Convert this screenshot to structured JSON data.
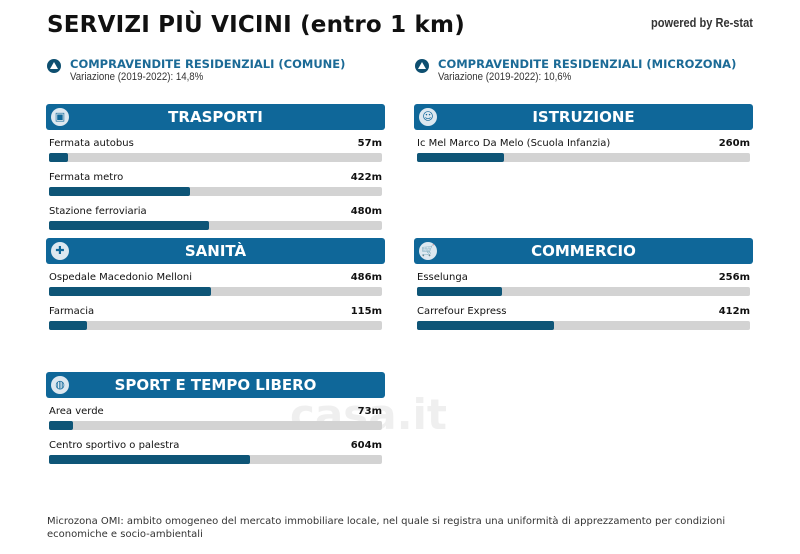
{
  "title": "SERVIZI PIÙ VICINI (entro 1 km)",
  "powered_by": "powered by Re-stat",
  "watermark": "casa.it",
  "stats": [
    {
      "heading": "COMPRAVENDITE RESIDENZIALI (COMUNE)",
      "sub": "Variazione (2019-2022): 14,8%",
      "icon": "triangle-up-icon"
    },
    {
      "heading": "COMPRAVENDITE RESIDENZIALI (MICROZONA)",
      "sub": "Variazione (2019-2022): 10,6%",
      "icon": "triangle-up-icon"
    }
  ],
  "scale_max_m": 1000,
  "bar_color": "#0e5577",
  "header_color": "#0f6799",
  "sections": [
    {
      "title": "TRASPORTI",
      "icon": "bus-icon",
      "items": [
        {
          "name": "Fermata autobus",
          "dist": "57m",
          "value": 57
        },
        {
          "name": "Fermata metro",
          "dist": "422m",
          "value": 422
        },
        {
          "name": "Stazione ferroviaria",
          "dist": "480m",
          "value": 480
        }
      ]
    },
    {
      "title": "ISTRUZIONE",
      "icon": "student-icon",
      "items": [
        {
          "name": "Ic Mel Marco Da Melo (Scuola Infanzia)",
          "dist": "260m",
          "value": 260
        }
      ]
    },
    {
      "title": "SANITÀ",
      "icon": "hospital-icon",
      "items": [
        {
          "name": "Ospedale Macedonio Melloni",
          "dist": "486m",
          "value": 486
        },
        {
          "name": "Farmacia",
          "dist": "115m",
          "value": 115
        }
      ]
    },
    {
      "title": "COMMERCIO",
      "icon": "cart-icon",
      "items": [
        {
          "name": "Esselunga",
          "dist": "256m",
          "value": 256
        },
        {
          "name": "Carrefour Express",
          "dist": "412m",
          "value": 412
        }
      ]
    },
    {
      "title": "SPORT E TEMPO LIBERO",
      "icon": "ball-icon",
      "items": [
        {
          "name": "Area verde",
          "dist": "73m",
          "value": 73
        },
        {
          "name": "Centro sportivo o palestra",
          "dist": "604m",
          "value": 604
        }
      ]
    }
  ],
  "note": "Microzona OMI: ambito omogeneo del mercato immobiliare locale, nel quale si registra una uniformità di apprezzamento per condizioni economiche e socio-ambientali"
}
